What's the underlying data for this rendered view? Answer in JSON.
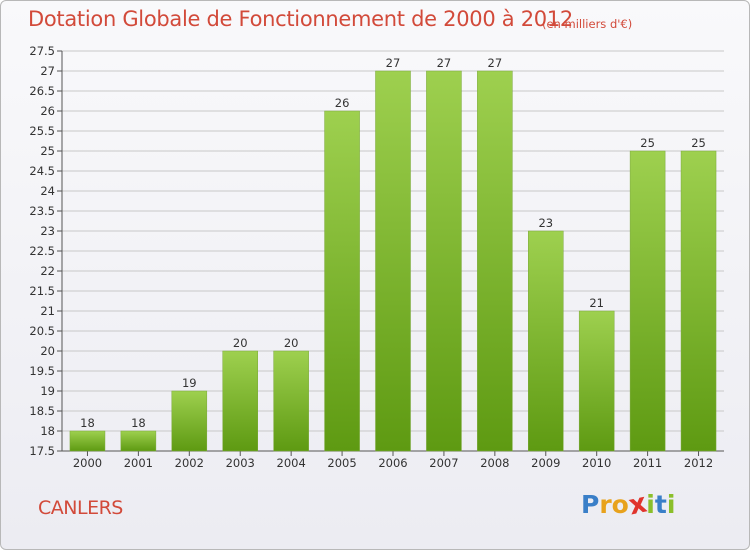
{
  "header": {
    "title": "Dotation Globale de Fonctionnement de 2000 à 2012",
    "subtitle": "(en milliers d'€)"
  },
  "footer": {
    "commune": "CANLERS",
    "logo_letters": [
      "P",
      "r",
      "o",
      "x",
      "i",
      "t",
      "i"
    ],
    "logo_colors": [
      "#3a7fc8",
      "#e8a21c",
      "#e8a21c",
      "#e0342c",
      "#8bbf2a",
      "#3a7fc8",
      "#8bbf2a"
    ]
  },
  "colors": {
    "bar_top": "#9ed04f",
    "bar_bottom": "#5e9a12",
    "grid": "#c8c8c8",
    "title": "#d24a3a"
  },
  "chart_data": {
    "type": "bar",
    "title": "Dotation Globale de Fonctionnement de 2000 à 2012",
    "unit": "(en milliers d'€)",
    "categories": [
      "2000",
      "2001",
      "2002",
      "2003",
      "2004",
      "2005",
      "2006",
      "2007",
      "2008",
      "2009",
      "2010",
      "2011",
      "2012"
    ],
    "values": [
      18,
      18,
      19,
      20,
      20,
      26,
      27,
      27,
      27,
      23,
      21,
      25,
      25
    ],
    "ylim": [
      17.5,
      27.5
    ],
    "yticks": [
      "17.5",
      "18",
      "18.5",
      "19",
      "19.5",
      "20",
      "20.5",
      "21",
      "21.5",
      "22",
      "22.5",
      "23",
      "23.5",
      "24",
      "24.5",
      "25",
      "25.5",
      "26",
      "26.5",
      "27",
      "27.5"
    ],
    "grid": true,
    "xlabel": "",
    "ylabel": ""
  }
}
